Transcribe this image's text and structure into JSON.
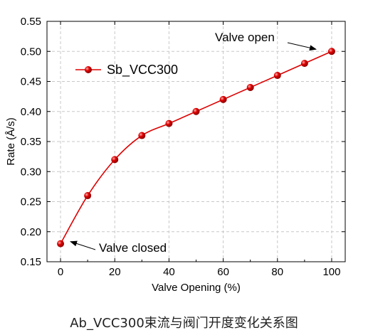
{
  "caption": "Ab_VCC300束流与阀门开度变化关系图",
  "chart_data": {
    "type": "line",
    "xlabel": "Valve Opening (%)",
    "ylabel": "Rate (Å/s)",
    "xlim": [
      -5,
      105
    ],
    "ylim": [
      0.15,
      0.55
    ],
    "xticks": [
      0,
      20,
      40,
      60,
      80,
      100
    ],
    "yticks": [
      0.15,
      0.2,
      0.25,
      0.3,
      0.35,
      0.4,
      0.45,
      0.5,
      0.55
    ],
    "grid": "dashed",
    "legend_position": "top-left",
    "series": [
      {
        "name": "Sb_VCC300",
        "color": "#dd0000",
        "x": [
          0,
          10,
          20,
          30,
          40,
          50,
          60,
          70,
          80,
          90,
          100
        ],
        "y": [
          0.18,
          0.26,
          0.32,
          0.36,
          0.38,
          0.4,
          0.42,
          0.44,
          0.46,
          0.48,
          0.5
        ]
      }
    ],
    "annotations": [
      {
        "text": "Valve open",
        "x": 100,
        "y": 0.5
      },
      {
        "text": "Valve closed",
        "x": 0,
        "y": 0.18
      }
    ]
  }
}
